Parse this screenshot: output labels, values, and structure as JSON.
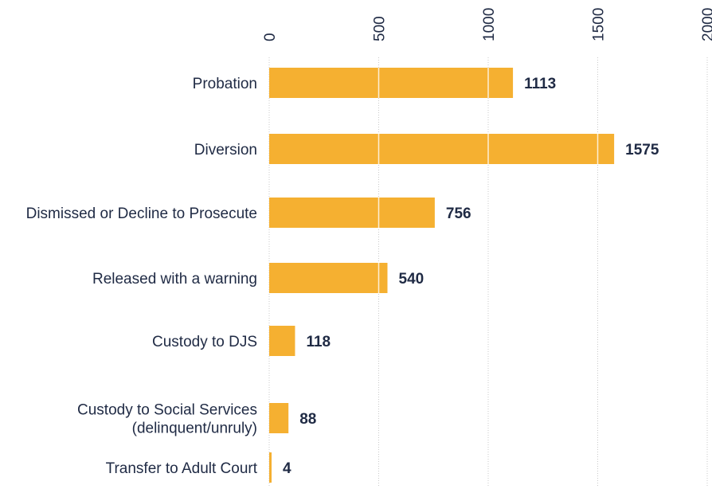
{
  "chart_data": {
    "type": "bar",
    "orientation": "horizontal",
    "categories": [
      [
        "Probation"
      ],
      [
        "Diversion"
      ],
      [
        "Dismissed or Decline to Prosecute"
      ],
      [
        "Released with a warning"
      ],
      [
        "Custody to DJS"
      ],
      [
        "Custody to Social Services",
        "(delinquent/unruly)"
      ],
      [
        "Transfer to Adult Court"
      ]
    ],
    "values": [
      1113,
      1575,
      756,
      540,
      118,
      88,
      4
    ],
    "value_labels": [
      "1113",
      "1575",
      "756",
      "540",
      "118",
      "88",
      "4"
    ],
    "xlim": [
      0,
      2000
    ],
    "ticks": [
      0,
      500,
      1000,
      1500,
      2000
    ],
    "tick_labels": [
      "0",
      "500",
      "1000",
      "1500",
      "2000"
    ],
    "title": "",
    "xlabel": "",
    "ylabel": "",
    "grid": true,
    "colors": {
      "bar": "#F5B031",
      "text": "#1F2A44",
      "grid": "#C9C9C9"
    }
  }
}
